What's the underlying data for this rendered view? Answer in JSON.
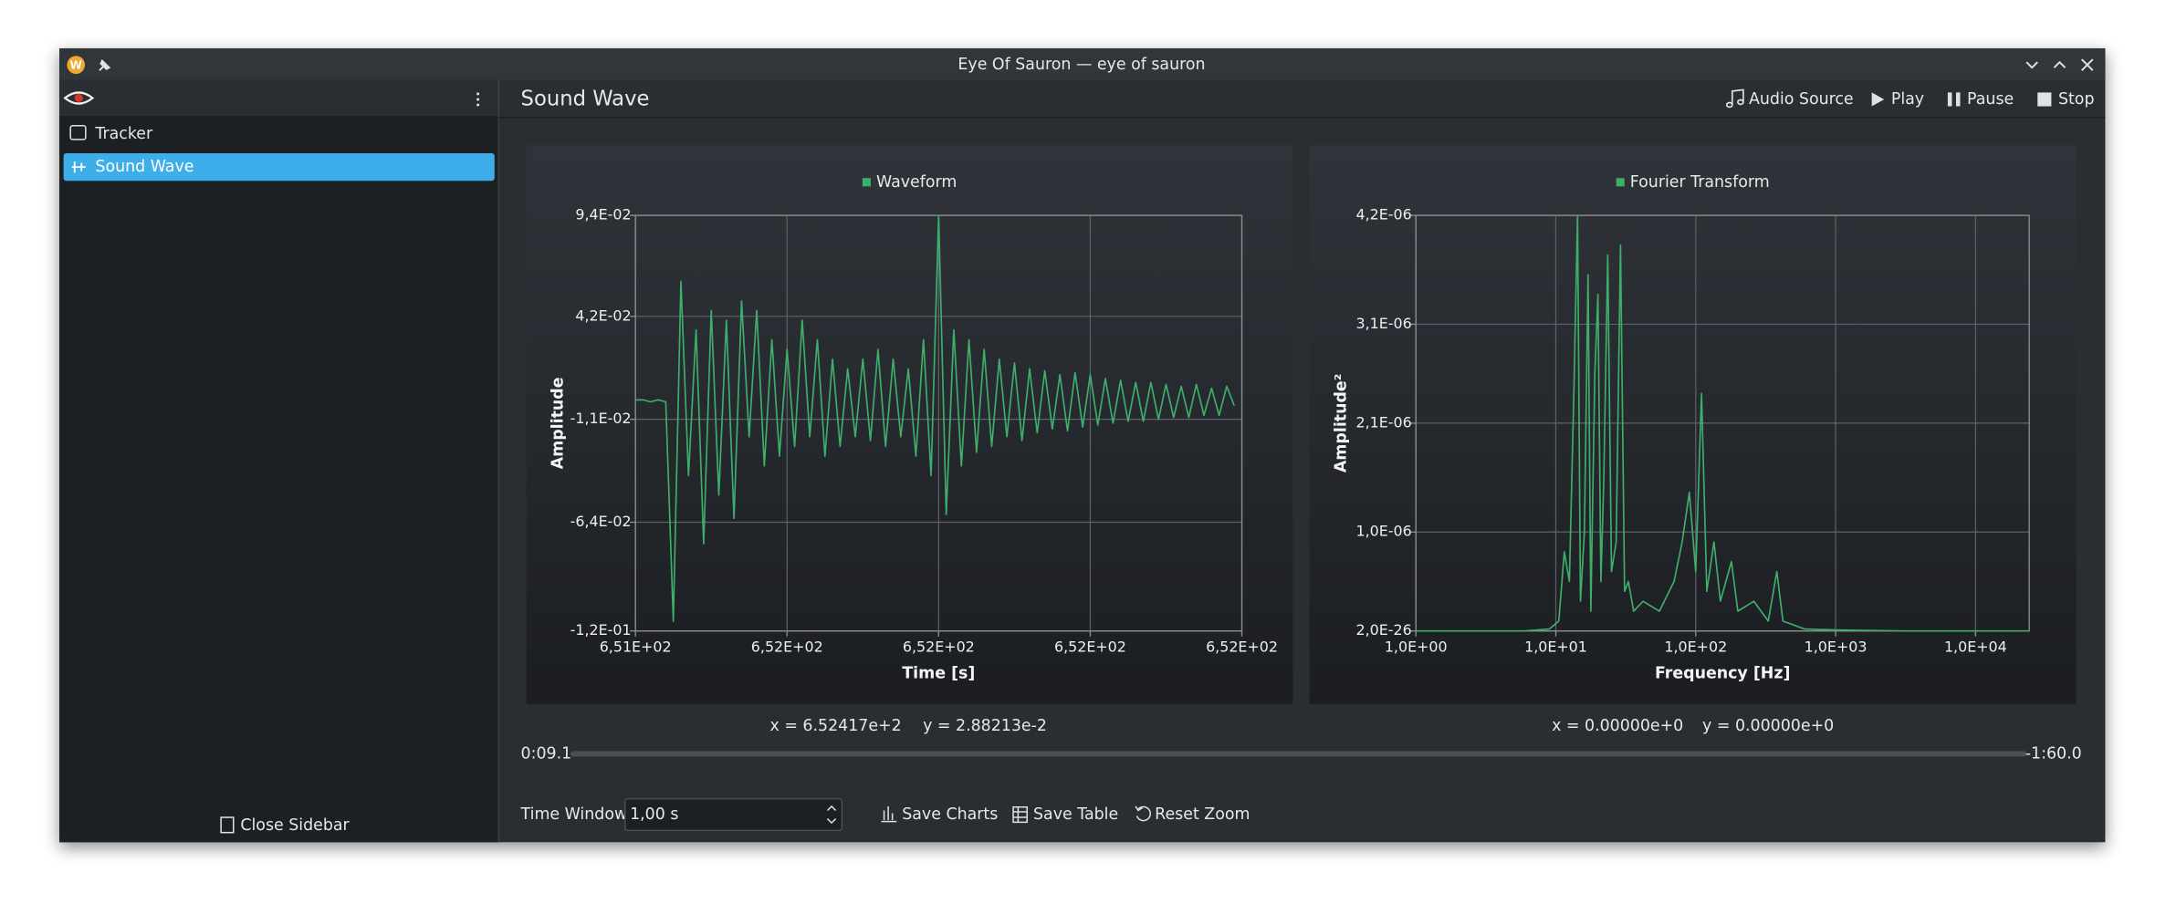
{
  "window": {
    "title": "Eye Of Sauron — eye of sauron"
  },
  "sidebar": {
    "items": [
      "Tracker",
      "Sound Wave"
    ],
    "close": "Close Sidebar"
  },
  "header": {
    "title": "Sound Wave",
    "actions": [
      "Audio Source",
      "Play",
      "Pause",
      "Stop"
    ]
  },
  "chart_data": [
    {
      "type": "line",
      "xlabel": "Time [s]",
      "ylabel": "Amplitude",
      "grid": true,
      "xlim": [
        651.4,
        652.4
      ],
      "ylim": [
        -0.12,
        0.094
      ],
      "xticks": [
        {
          "value": 651.4,
          "label": "6,51E+02"
        },
        {
          "value": 651.65,
          "label": "6,52E+02"
        },
        {
          "value": 651.9,
          "label": "6,52E+02"
        },
        {
          "value": 652.15,
          "label": "6,52E+02"
        },
        {
          "value": 652.4,
          "label": "6,52E+02"
        }
      ],
      "yticks": [
        {
          "value": -0.12,
          "label": "-1,2E-01"
        },
        {
          "value": -0.064,
          "label": "-6,4E-02"
        },
        {
          "value": -0.011,
          "label": "-1,1E-02"
        },
        {
          "value": 0.042,
          "label": "4,2E-02"
        },
        {
          "value": 0.094,
          "label": "9,4E-02"
        }
      ],
      "x": [
        651.4,
        651.4125,
        651.425,
        651.4375,
        651.45,
        651.4625,
        651.475,
        651.4875,
        651.5,
        651.5125,
        651.525,
        651.5375,
        651.55,
        651.5625,
        651.575,
        651.5875,
        651.6,
        651.6125,
        651.625,
        651.6375,
        651.65,
        651.6625,
        651.675,
        651.6875,
        651.7,
        651.7125,
        651.725,
        651.7375,
        651.75,
        651.7625,
        651.775,
        651.7875,
        651.8,
        651.8125,
        651.825,
        651.8375,
        651.85,
        651.8625,
        651.875,
        651.8875,
        651.9,
        651.9125,
        651.925,
        651.9375,
        651.95,
        651.9625,
        651.975,
        651.9875,
        652.0,
        652.0125,
        652.025,
        652.0375,
        652.05,
        652.0625,
        652.075,
        652.0875,
        652.1,
        652.1125,
        652.125,
        652.1375,
        652.15,
        652.1625,
        652.175,
        652.1875,
        652.2,
        652.2125,
        652.225,
        652.2375,
        652.25,
        652.2625,
        652.275,
        652.2875,
        652.3,
        652.3125,
        652.325,
        652.3375,
        652.35,
        652.3625,
        652.375,
        652.3875
      ],
      "series": [
        {
          "name": "Waveform",
          "color": "#3daf6a",
          "values": [
            -0.001,
            -0.001,
            -0.002,
            -0.001,
            -0.002,
            -0.115,
            0.06,
            -0.04,
            0.035,
            -0.075,
            0.045,
            -0.05,
            0.04,
            -0.062,
            0.05,
            -0.02,
            0.045,
            -0.035,
            0.03,
            -0.03,
            0.025,
            -0.025,
            0.04,
            -0.02,
            0.03,
            -0.03,
            0.02,
            -0.025,
            0.015,
            -0.02,
            0.02,
            -0.022,
            0.025,
            -0.025,
            0.02,
            -0.02,
            0.015,
            -0.03,
            0.03,
            -0.04,
            0.094,
            -0.06,
            0.035,
            -0.035,
            0.03,
            -0.028,
            0.025,
            -0.025,
            0.02,
            -0.02,
            0.018,
            -0.022,
            0.015,
            -0.018,
            0.014,
            -0.016,
            0.012,
            -0.017,
            0.013,
            -0.015,
            0.012,
            -0.014,
            0.01,
            -0.013,
            0.009,
            -0.012,
            0.008,
            -0.012,
            0.008,
            -0.011,
            0.007,
            -0.01,
            0.006,
            -0.01,
            0.007,
            -0.009,
            0.005,
            -0.009,
            0.006,
            -0.004
          ]
        }
      ]
    },
    {
      "type": "line",
      "xlabel": "Frequency [Hz]",
      "ylabel": "Amplitude²",
      "grid": true,
      "xscale": "log",
      "xlim": [
        1,
        24200
      ],
      "ylim": [
        2e-26,
        4.2e-06
      ],
      "xticks": [
        {
          "value": 1,
          "label": "1,0E+00"
        },
        {
          "value": 10,
          "label": "1,0E+01"
        },
        {
          "value": 100,
          "label": "1,0E+02"
        },
        {
          "value": 1000,
          "label": "1,0E+03"
        },
        {
          "value": 10000,
          "label": "1,0E+04"
        }
      ],
      "yticks": [
        {
          "value": 2e-26,
          "label": "2,0E-26"
        },
        {
          "value": 1e-06,
          "label": "1,0E-06"
        },
        {
          "value": 2.1e-06,
          "label": "2,1E-06"
        },
        {
          "value": 3.1e-06,
          "label": "3,1E-06"
        },
        {
          "value": 4.2e-06,
          "label": "4,2E-06"
        }
      ],
      "x": [
        1,
        3,
        6,
        9,
        10.5,
        11.5,
        12.5,
        13.5,
        14.3,
        15,
        16,
        17,
        17.8,
        19,
        20,
        21,
        22,
        23.5,
        25,
        27,
        29,
        31,
        33,
        36,
        42,
        55,
        70,
        80,
        90,
        100,
        110,
        120,
        135,
        150,
        180,
        200,
        260,
        330,
        380,
        420,
        600,
        1000,
        3000,
        10000,
        24000
      ],
      "series": [
        {
          "name": "Fourier Transform",
          "color": "#3daf6a",
          "values": [
            0,
            0,
            0,
            2e-08,
            1e-07,
            8e-07,
            5e-07,
            2.5e-06,
            4.2e-06,
            3e-07,
            1e-06,
            3.6e-06,
            2e-07,
            2.6e-06,
            3.4e-06,
            5e-07,
            1.5e-06,
            3.8e-06,
            6e-07,
            9e-07,
            3.9e-06,
            4e-07,
            5e-07,
            2e-07,
            3e-07,
            2e-07,
            5e-07,
            9e-07,
            1.4e-06,
            6e-07,
            2.4e-06,
            4e-07,
            9e-07,
            3e-07,
            7e-07,
            2e-07,
            3e-07,
            1e-07,
            6e-07,
            1e-07,
            2e-08,
            1e-08,
            0,
            0,
            0
          ]
        }
      ]
    }
  ],
  "cursor_readouts": [
    [
      "x = 6.52417e+2",
      "y = 2.88213e-2"
    ],
    [
      "x = 0.00000e+0",
      "y = 0.00000e+0"
    ]
  ],
  "playback": {
    "elapsed": "0:09.1",
    "remaining": "-1:60.0"
  },
  "footer": {
    "time_window_label": "Time Window",
    "time_window_value": "1,00 s",
    "actions": [
      "Save Charts",
      "Save Table",
      "Reset Zoom"
    ]
  }
}
